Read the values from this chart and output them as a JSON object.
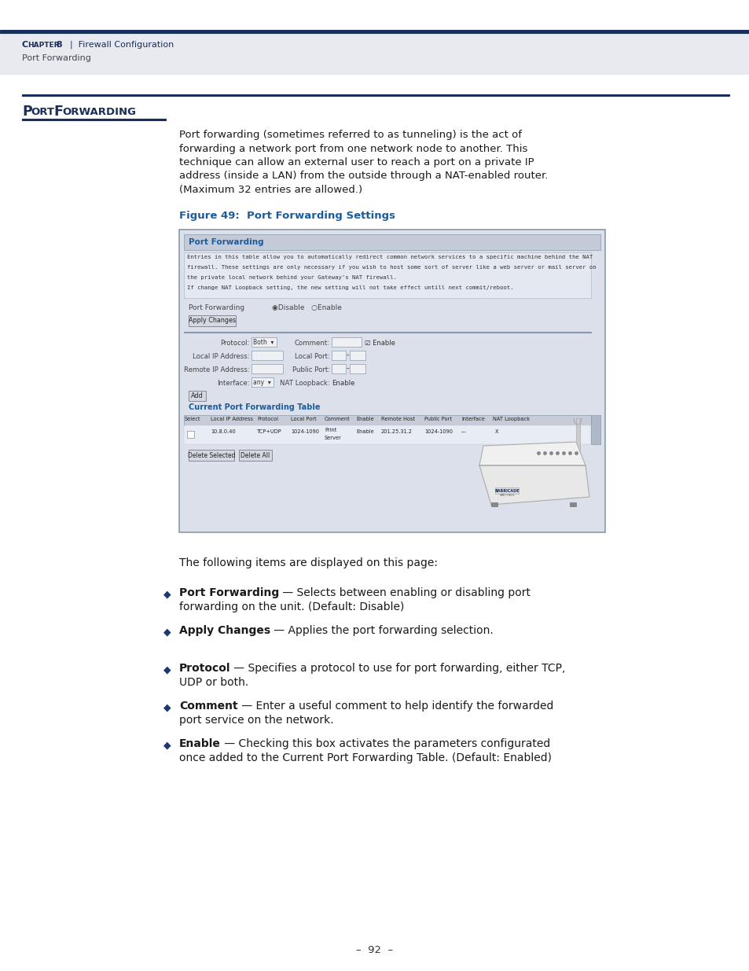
{
  "bg_color": "#ffffff",
  "header_bar_color": "#1a2e5a",
  "header_bg_color": "#e8eaf0",
  "header_text_chapter_bold": "CHAPTER 8",
  "header_text_chapter_normal": "  |  Firewall Configuration",
  "header_text_sub": "Port Forwarding",
  "header_text_color": "#1a2e5a",
  "section_title_color": "#1a2e5a",
  "section_line_color": "#1a2e5a",
  "body_text_color": "#1a1a1a",
  "figure_caption": "Figure 49:  Port Forwarding Settings",
  "figure_caption_color": "#1a5ca0",
  "body_paragraph_lines": [
    "Port forwarding (sometimes referred to as tunneling) is the act of",
    "forwarding a network port from one network node to another. This",
    "technique can allow an external user to reach a port on a private IP",
    "address (inside a LAN) from the outside through a NAT-enabled router.",
    "(Maximum 32 entries are allowed.)"
  ],
  "bullet_items": [
    {
      "bold": "Port Forwarding",
      "rest": " — Selects between enabling or disabling port",
      "cont": "forwarding on the unit. (Default: Disable)"
    },
    {
      "bold": "Apply Changes",
      "rest": " — Applies the port forwarding selection.",
      "cont": ""
    },
    {
      "bold": "Protocol",
      "rest": " — Specifies a protocol to use for port forwarding, either TCP,",
      "cont": "UDP or both."
    },
    {
      "bold": "Comment",
      "rest": " — Enter a useful comment to help identify the forwarded",
      "cont": "port service on the network."
    },
    {
      "bold": "Enable",
      "rest": " — Checking this box activates the parameters configurated",
      "cont": "once added to the Current Port Forwarding Table. (Default: Enabled)"
    }
  ],
  "footer_text": "–  92  –",
  "footer_color": "#333333",
  "page_number": "92",
  "ss_bg": "#dce0ea",
  "ss_border": "#8899aa",
  "ss_header_bg": "#c4cad8",
  "ss_header_color": "#1a5ca0",
  "ss_info_bg": "#e4e8f0",
  "ss_section_bg": "#ccd0dc",
  "ss_field_bg": "#eef0f4",
  "ss_table_header_bg": "#c8ccd8",
  "ss_table_row_bg": "#e8ecf4",
  "ss_btn_bg": "#d4d8e0",
  "ss_text_color": "#222222",
  "ss_blue": "#1a5ca0",
  "ss_scrollbar_bg": "#b0b8c8"
}
